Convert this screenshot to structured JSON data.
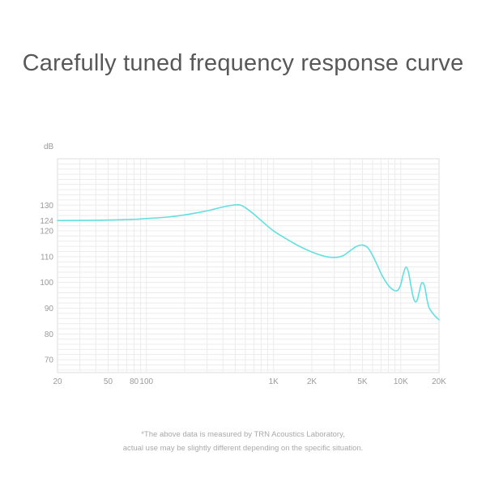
{
  "title": "Carefully tuned frequency response curve",
  "footnote": {
    "line1": "*The above data is measured by TRN Acoustics Laboratory,",
    "line2": "actual use may be slightly different depending on the specific situation."
  },
  "colors": {
    "curve": "#62e0e0",
    "grid": "#ececec",
    "axis_text": "#9a9a9a"
  },
  "chart_data": {
    "type": "line",
    "title": "Carefully tuned frequency response curve",
    "xlabel": "",
    "ylabel": "dB",
    "x_scale": "log",
    "xlim": [
      20,
      20000
    ],
    "ylim": [
      65,
      148
    ],
    "grid": true,
    "y_ticks": [
      70,
      80,
      90,
      100,
      110,
      120,
      124,
      130
    ],
    "x_ticks": [
      {
        "value": 20,
        "label": "20"
      },
      {
        "value": 50,
        "label": "50"
      },
      {
        "value": 80,
        "label": "80"
      },
      {
        "value": 100,
        "label": "100"
      },
      {
        "value": 1000,
        "label": "1K"
      },
      {
        "value": 2000,
        "label": "2K"
      },
      {
        "value": 5000,
        "label": "5K"
      },
      {
        "value": 10000,
        "label": "10K"
      },
      {
        "value": 20000,
        "label": "20K"
      }
    ],
    "series": [
      {
        "x": [
          20,
          50,
          80,
          100,
          150,
          200,
          300,
          400,
          500,
          550,
          600,
          700,
          800,
          1000,
          1300,
          1600,
          2000,
          2500,
          3000,
          3500,
          4000,
          4500,
          5000,
          5500,
          6000,
          6500,
          7000,
          7500,
          8000,
          8500,
          9000,
          9500,
          10000,
          10500,
          11000,
          11500,
          12000,
          12500,
          13000,
          13500,
          14000,
          14500,
          15000,
          15500,
          16000,
          16500,
          17000,
          18000,
          19000,
          20000
        ],
        "y": [
          124,
          124.2,
          124.5,
          124.8,
          125.4,
          126.2,
          127.8,
          129.3,
          130.1,
          130,
          129,
          126.5,
          124,
          120,
          116.5,
          114,
          111.8,
          110.2,
          109.7,
          110.3,
          112.3,
          114,
          114.5,
          113.5,
          110.5,
          107,
          103.5,
          100.8,
          98.8,
          97.5,
          96.8,
          97,
          99.2,
          103.5,
          106,
          104,
          99,
          94.5,
          92.5,
          93.3,
          96.5,
          99.5,
          99.8,
          98,
          94,
          91,
          89.5,
          87.8,
          86.5,
          85.5
        ]
      }
    ]
  }
}
